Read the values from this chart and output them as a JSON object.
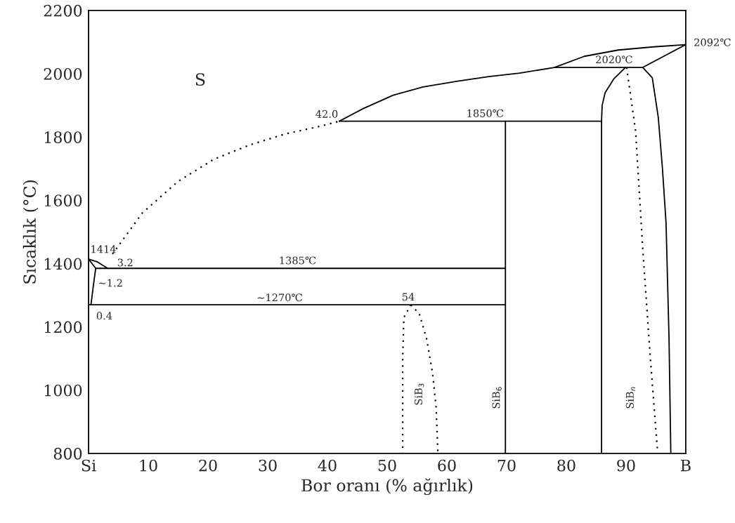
{
  "chart_data": {
    "type": "line",
    "xlabel": "Bor oranı (% ağırlık)",
    "ylabel": "Sıcaklık (°C)",
    "xlim": [
      0,
      100
    ],
    "ylim": [
      800,
      2200
    ],
    "xticks": [
      {
        "value": 0,
        "label": "Si"
      },
      10,
      20,
      30,
      40,
      50,
      60,
      70,
      80,
      90,
      {
        "value": 100,
        "label": "B"
      }
    ],
    "yticks": [
      800,
      1000,
      1200,
      1400,
      1600,
      1800,
      2000,
      2200
    ],
    "grid": false,
    "marker": "none",
    "series": [
      {
        "color": "#000000",
        "line_style": "dotted",
        "x": [
          4,
          9,
          15,
          21,
          27,
          33,
          39,
          42
        ],
        "values": [
          1430,
          1560,
          1660,
          1730,
          1775,
          1810,
          1835,
          1850
        ]
      },
      {
        "color": "#000000",
        "line_style": "solid",
        "x": [
          42,
          46,
          51,
          56,
          61.6,
          67,
          72.2,
          78,
          83,
          88.7,
          94.6,
          100
        ],
        "values": [
          1850,
          1890,
          1932,
          1958,
          1976,
          1991,
          2002,
          2020,
          2055,
          2075,
          2085,
          2092
        ]
      },
      {
        "color": "#000000",
        "line_style": "solid",
        "x": [
          78,
          92.8,
          100
        ],
        "values": [
          2020,
          2020,
          2092
        ]
      },
      {
        "color": "#000000",
        "line_style": "solid",
        "x": [
          42,
          85.9
        ],
        "values": [
          1850,
          1850
        ]
      },
      {
        "color": "#000000",
        "line_style": "solid",
        "x": [
          89.9,
          88,
          86.5,
          86,
          85.9,
          85.9
        ],
        "values": [
          2020,
          1985,
          1940,
          1900,
          1850,
          800
        ]
      },
      {
        "color": "#000000",
        "line_style": "solid",
        "x": [
          92.8,
          94.4,
          95.4,
          96.1,
          96.7,
          97.2,
          97.5
        ],
        "values": [
          2020,
          1987,
          1862,
          1700,
          1528,
          1163,
          800
        ]
      },
      {
        "color": "#000000",
        "line_style": "dotted",
        "x": [
          90.1,
          91.6,
          92.8,
          94,
          95.3
        ],
        "values": [
          2020,
          1819,
          1447,
          1119,
          800
        ]
      },
      {
        "color": "#000000",
        "line_style": "solid",
        "x": [
          69.8,
          69.8
        ],
        "values": [
          1850,
          800
        ]
      },
      {
        "color": "#000000",
        "line_style": "solid",
        "x": [
          1.2,
          69.8
        ],
        "values": [
          1385,
          1385
        ]
      },
      {
        "color": "#000000",
        "line_style": "solid",
        "x": [
          0,
          69.8
        ],
        "values": [
          1270,
          1270
        ]
      },
      {
        "color": "#000000",
        "line_style": "solid",
        "x": [
          0,
          1.5,
          3.2
        ],
        "values": [
          1414,
          1405,
          1385
        ]
      },
      {
        "color": "#000000",
        "line_style": "solid",
        "x": [
          0,
          1.2,
          0.8,
          0.4
        ],
        "values": [
          1414,
          1385,
          1330,
          1270
        ]
      },
      {
        "color": "#000000",
        "line_style": "dotted",
        "x": [
          54,
          52.8,
          52.6,
          52.6
        ],
        "values": [
          1270,
          1230,
          1100,
          800
        ]
      },
      {
        "color": "#000000",
        "line_style": "dotted",
        "x": [
          54,
          55.4,
          56.6,
          57.6,
          58.2,
          58.5
        ],
        "values": [
          1270,
          1240,
          1163,
          1054,
          945,
          800
        ]
      }
    ],
    "annotations": [
      "S",
      {
        "text": "42.0",
        "x": 42,
        "y": 1850
      },
      {
        "text": "1850℃",
        "x": 66.4,
        "y": 1850
      },
      {
        "text": "2020℃",
        "x": 88,
        "y": 2020
      },
      {
        "text": "2092℃",
        "x": 100,
        "y": 2092
      },
      {
        "text": "1414",
        "x": 0,
        "y": 1414
      },
      {
        "text": "3.2",
        "x": 3.2,
        "y": 1385
      },
      {
        "text": "~1.2",
        "x": 1.2,
        "y": 1385
      },
      {
        "text": "1385℃",
        "x": 35,
        "y": 1385
      },
      {
        "text": "~1270℃",
        "x": 32,
        "y": 1270
      },
      {
        "text": "0.4",
        "x": 0.4,
        "y": 1270
      },
      {
        "text": "54",
        "x": 54,
        "y": 1270
      },
      "SiB$_{3}$",
      "SiB$_{6}$",
      "SiB$_{n}$"
    ]
  }
}
